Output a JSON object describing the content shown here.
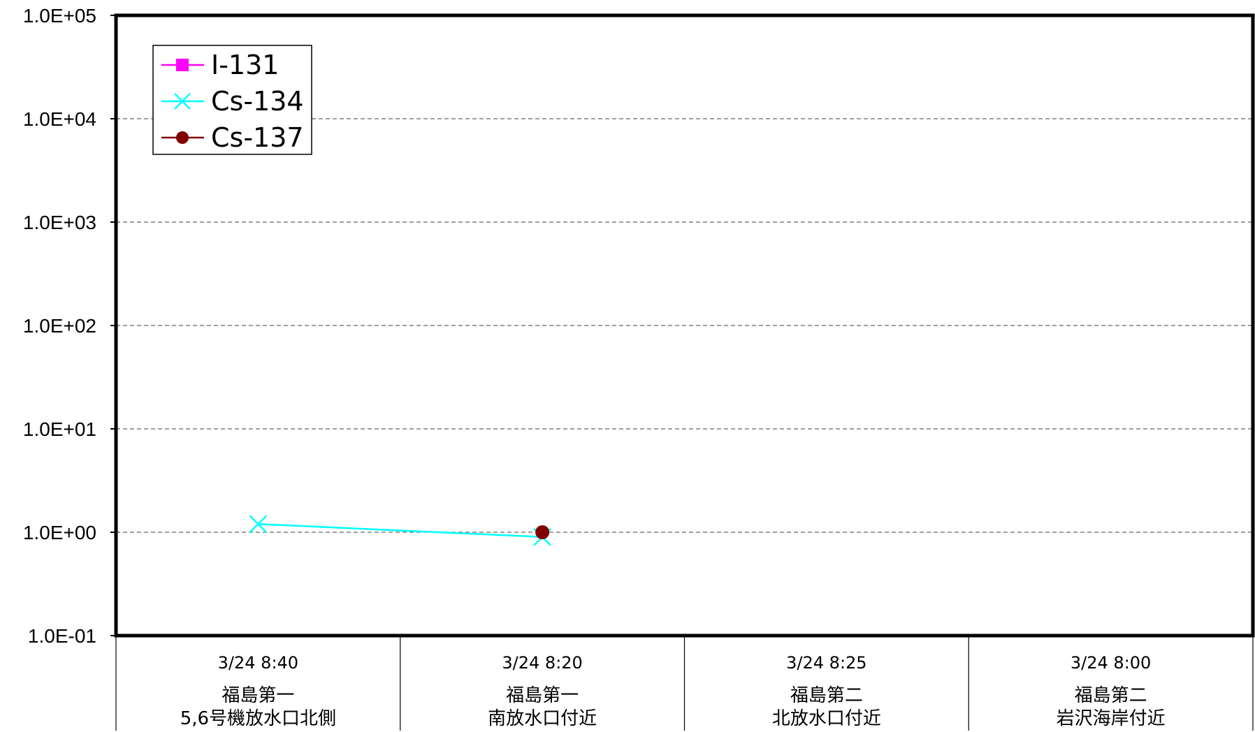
{
  "chart_data": {
    "type": "line",
    "title": "",
    "xlabel": "",
    "ylabel": "",
    "yscale": "log",
    "ylim": [
      0.1,
      100000
    ],
    "yticks": [
      "1.0E-01",
      "1.0E+00",
      "1.0E+01",
      "1.0E+02",
      "1.0E+03",
      "1.0E+04",
      "1.0E+05"
    ],
    "grid": true,
    "legend": "top-left",
    "categories": [
      {
        "time": "3/24 8:40",
        "site_line1": "福島第一",
        "site_line2": "5,6号機放水口北側"
      },
      {
        "time": "3/24 8:20",
        "site_line1": "福島第一",
        "site_line2": "南放水口付近"
      },
      {
        "time": "3/24 8:25",
        "site_line1": "福島第二",
        "site_line2": "北放水口付近"
      },
      {
        "time": "3/24 8:00",
        "site_line1": "福島第二",
        "site_line2": "岩沢海岸付近"
      }
    ],
    "series": [
      {
        "name": "I-131",
        "color": "#ff00ff",
        "marker": "square",
        "values": [
          null,
          null,
          null,
          null
        ]
      },
      {
        "name": "Cs-134",
        "color": "#00ffff",
        "marker": "x",
        "values": [
          1.2,
          0.9,
          null,
          null
        ]
      },
      {
        "name": "Cs-137",
        "color": "#800000",
        "marker": "circle",
        "values": [
          null,
          1.0,
          null,
          null
        ]
      }
    ]
  }
}
